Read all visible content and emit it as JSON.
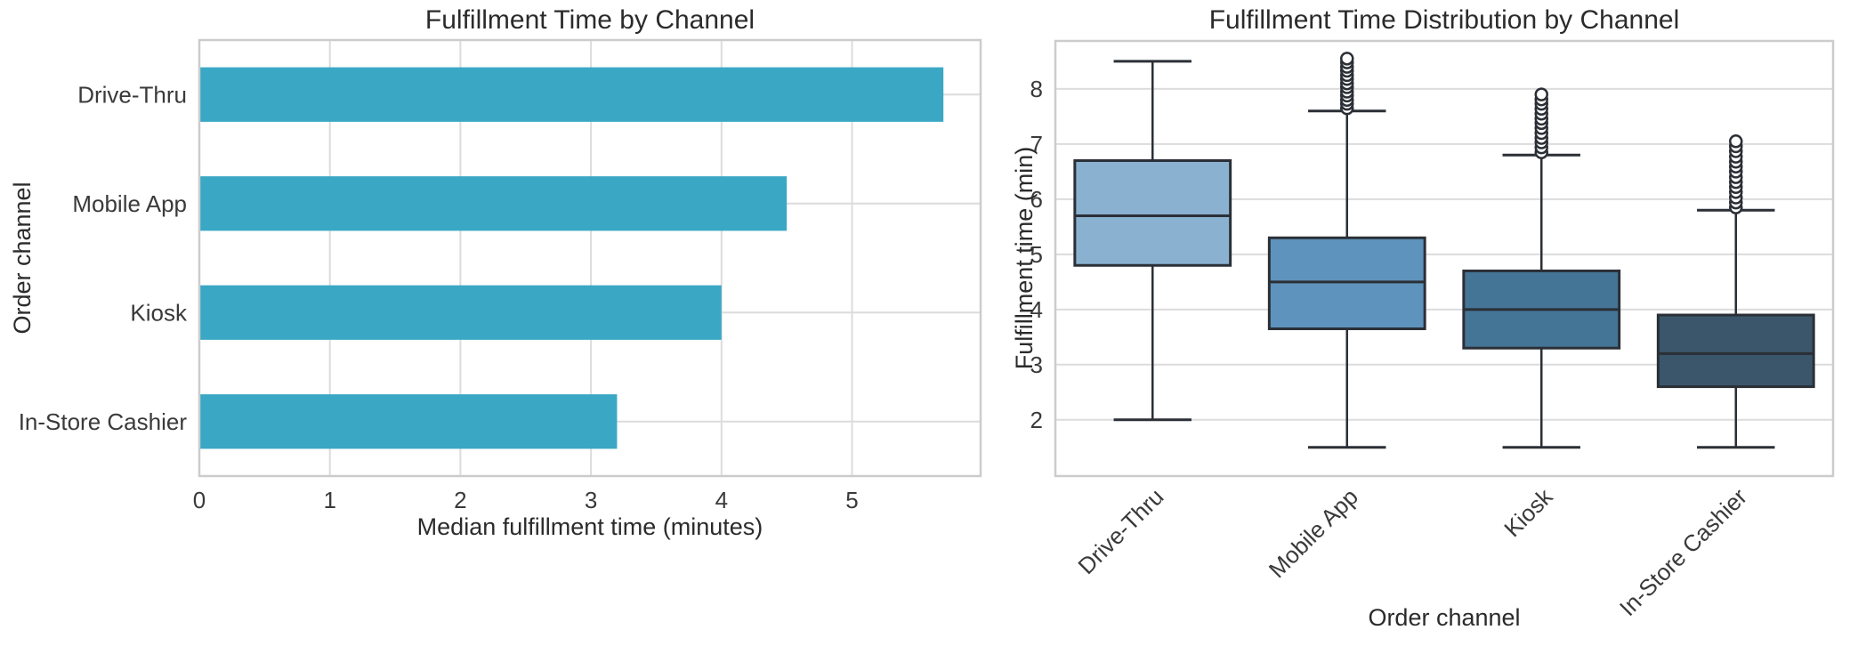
{
  "figure": {
    "background": "#ffffff"
  },
  "styles": {
    "text_color": "#2b2b2b",
    "tick_color": "#3a3a3a",
    "grid_color": "#dcdcdc",
    "spine_color": "#cccccc",
    "box_line_color": "#2b2f36"
  },
  "chart_data": [
    {
      "type": "bar",
      "orientation": "horizontal",
      "title": "Fulfillment Time by Channel",
      "xlabel": "Median fulfillment time (minutes)",
      "ylabel": "Order channel",
      "categories": [
        "Drive-Thru",
        "Mobile App",
        "Kiosk",
        "In-Store Cashier"
      ],
      "values": [
        5.7,
        4.5,
        4.0,
        3.2
      ],
      "bar_color": "#3aa8c4",
      "xticks": [
        0,
        1,
        2,
        3,
        4,
        5
      ],
      "xlim": [
        0,
        5.985
      ],
      "grid": true,
      "legend": "none"
    },
    {
      "type": "box",
      "title": "Fulfillment Time Distribution by Channel",
      "xlabel": "Order channel",
      "ylabel": "Fulfillment time (min)",
      "categories": [
        "Drive-Thru",
        "Mobile App",
        "Kiosk",
        "In-Store Cashier"
      ],
      "series": [
        {
          "name": "Drive-Thru",
          "whisker_low": 2.0,
          "q1": 4.8,
          "median": 5.7,
          "q3": 6.7,
          "whisker_high": 8.5,
          "outliers": [],
          "color": "#8ab1d0"
        },
        {
          "name": "Mobile App",
          "whisker_low": 1.5,
          "q1": 3.65,
          "median": 4.5,
          "q3": 5.3,
          "whisker_high": 7.6,
          "outliers": [
            7.65,
            7.73,
            7.8,
            7.88,
            7.95,
            8.03,
            8.1,
            8.18,
            8.25,
            8.33,
            8.4,
            8.48,
            8.55
          ],
          "color": "#5e93bd"
        },
        {
          "name": "Kiosk",
          "whisker_low": 1.5,
          "q1": 3.3,
          "median": 4.0,
          "q3": 4.7,
          "whisker_high": 6.8,
          "outliers": [
            6.85,
            6.94,
            7.03,
            7.11,
            7.2,
            7.29,
            7.38,
            7.46,
            7.55,
            7.64,
            7.73,
            7.81,
            7.9
          ],
          "color": "#447596"
        },
        {
          "name": "In-Store Cashier",
          "whisker_low": 1.5,
          "q1": 2.6,
          "median": 3.2,
          "q3": 3.9,
          "whisker_high": 5.8,
          "outliers": [
            5.85,
            5.94,
            6.03,
            6.13,
            6.22,
            6.31,
            6.4,
            6.5,
            6.59,
            6.68,
            6.77,
            6.87,
            6.96,
            7.05
          ],
          "color": "#3b566b"
        }
      ],
      "yticks": [
        2,
        3,
        4,
        5,
        6,
        7,
        8
      ],
      "ylim": [
        0.98,
        8.87
      ],
      "grid": true,
      "legend": "none"
    }
  ]
}
